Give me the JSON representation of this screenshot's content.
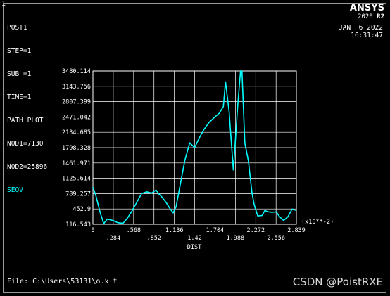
{
  "window": {
    "number": "1"
  },
  "info": {
    "lines": [
      "POST1",
      "STEP=1",
      "SUB =1",
      "TIME=1",
      "PATH PLOT",
      "NOD1=7130",
      "NOD2=25896"
    ],
    "result_label": "SEQV"
  },
  "logo": {
    "name": "ANSYS",
    "version": "2020",
    "release": "R2"
  },
  "datetime": {
    "date": "JAN  6 2022",
    "time": "16:31:47"
  },
  "file": {
    "label": "File: C:\\Users\\53131\\o.x_t"
  },
  "watermark": "CSDN @PoistRXE",
  "colors": {
    "background": "#000000",
    "grid": "#ffffff",
    "curve": "#00ffff",
    "result_label": "#00ffff"
  },
  "chart_data": {
    "type": "line",
    "xlabel": "DIST",
    "x_multiplier": "(x10**-2)",
    "xlim": [
      0,
      2.839
    ],
    "ylim": [
      116.543,
      3480.114
    ],
    "grid": true,
    "x_ticks_top": [
      "0",
      ".568",
      "1.136",
      "1.704",
      "2.272",
      "2.839"
    ],
    "x_ticks_bottom": [
      ".284",
      ".852",
      "1.42",
      "1.988",
      "2.556"
    ],
    "x_tick_values_top": [
      0,
      0.568,
      1.136,
      1.704,
      2.272,
      2.839
    ],
    "x_tick_values_bottom": [
      0.284,
      0.852,
      1.42,
      1.988,
      2.556
    ],
    "y_ticks": [
      "116.543",
      "452.9",
      "789.257",
      "1125.614",
      "1461.971",
      "1798.328",
      "2134.685",
      "2471.042",
      "2807.399",
      "3143.756",
      "3480.114"
    ],
    "y_tick_values": [
      116.543,
      452.9,
      789.257,
      1125.614,
      1461.971,
      1798.328,
      2134.685,
      2471.042,
      2807.399,
      3143.756,
      3480.114
    ],
    "series": [
      {
        "x": [
          0,
          0.04,
          0.1,
          0.15,
          0.2,
          0.28,
          0.35,
          0.42,
          0.48,
          0.55,
          0.62,
          0.68,
          0.75,
          0.82,
          0.88,
          0.92,
          0.96,
          1.02,
          1.08,
          1.12,
          1.16,
          1.22,
          1.28,
          1.35,
          1.42,
          1.48,
          1.55,
          1.62,
          1.7,
          1.76,
          1.82,
          1.85,
          1.9,
          1.96,
          2.02,
          2.06,
          2.08,
          2.12,
          2.17,
          2.22,
          2.25,
          2.3,
          2.36,
          2.4,
          2.44,
          2.5,
          2.56,
          2.6,
          2.66,
          2.72,
          2.78,
          2.839
        ],
        "y": [
          930,
          750,
          380,
          130,
          230,
          200,
          150,
          140,
          250,
          420,
          620,
          790,
          830,
          800,
          870,
          780,
          720,
          600,
          450,
          370,
          500,
          1000,
          1500,
          1900,
          1800,
          2000,
          2200,
          2350,
          2470,
          2550,
          2700,
          3250,
          2600,
          1300,
          2700,
          3480,
          3480,
          1900,
          1500,
          800,
          550,
          300,
          310,
          420,
          390,
          380,
          390,
          290,
          200,
          280,
          450,
          420
        ]
      }
    ]
  }
}
